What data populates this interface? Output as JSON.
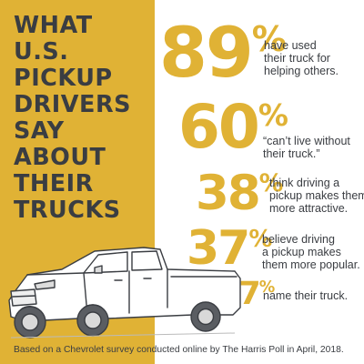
{
  "headline": [
    "WHAT",
    "U.S.",
    "PICKUP",
    "DRIVERS",
    "SAY",
    "ABOUT",
    "THEIR",
    "TRUCKS"
  ],
  "stats": [
    {
      "number": "89",
      "percent": "%",
      "lines": [
        "have used",
        "their truck for",
        "helping others."
      ]
    },
    {
      "number": "60",
      "percent": "%",
      "lines": [
        "“can’t live without",
        " their truck.”"
      ]
    },
    {
      "number": "38",
      "percent": "%",
      "lines": [
        "think driving a",
        "pickup makes them",
        "more attractive."
      ]
    },
    {
      "number": "37",
      "percent": "%",
      "lines": [
        "believe driving",
        "a pickup makes",
        "them more popular."
      ]
    },
    {
      "number": "27",
      "percent": "%",
      "lines": [
        "name their truck."
      ]
    }
  ],
  "footer": "Based on a Chevrolet survey conducted online by The Harris Poll in April, 2018.",
  "colors": {
    "accent": "#e0b235",
    "text": "#3a3d42",
    "background": "#ffffff"
  }
}
